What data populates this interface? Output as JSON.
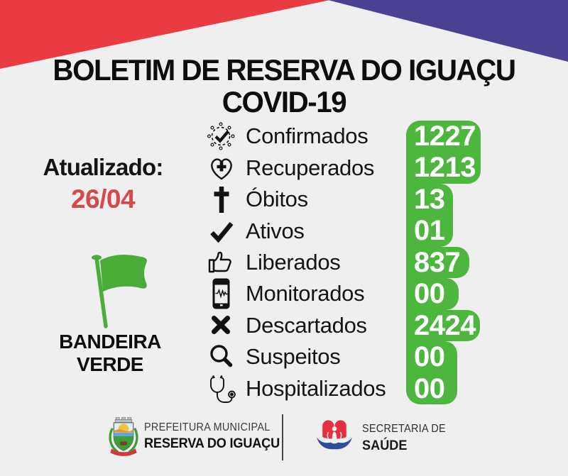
{
  "page": {
    "background": "#f0efef"
  },
  "banner": {
    "red": "#e93b41",
    "blue": "#4a4192"
  },
  "title": {
    "line1": "BOLETIM DE RESERVA DO IGUAÇU",
    "line2": "COVID-19"
  },
  "updated": {
    "label": "Atualizado:",
    "date": "26/04",
    "date_color": "#d4494e"
  },
  "flag": {
    "icon": "green-flag-icon",
    "color": "#4aad39",
    "label_line1": "BANDEIRA",
    "label_line2": "VERDE"
  },
  "stats": {
    "panel_color": "#4db63e",
    "value_color": "#ffffff",
    "rows": [
      {
        "icon": "virus-check-icon",
        "label": "Confirmados",
        "value": "1227"
      },
      {
        "icon": "heart-plus-icon",
        "label": "Recuperados",
        "value": "1213"
      },
      {
        "icon": "cross-icon",
        "label": "Óbitos",
        "value": "13"
      },
      {
        "icon": "checkmark-icon",
        "label": "Ativos",
        "value": "01"
      },
      {
        "icon": "thumbs-up-icon",
        "label": "Liberados",
        "value": "837"
      },
      {
        "icon": "phone-monitor-icon",
        "label": "Monitorados",
        "value": "00"
      },
      {
        "icon": "x-icon",
        "label": "Descartados",
        "value": "2424"
      },
      {
        "icon": "magnifier-icon",
        "label": "Suspeitos",
        "value": "00"
      },
      {
        "icon": "stethoscope-icon",
        "label": "Hospitalizados",
        "value": "00"
      }
    ]
  },
  "footer": {
    "left": {
      "icon": "city-coat-of-arms",
      "line1": "PREFEITURA MUNICIPAL",
      "line2": "RESERVA DO IGUAÇU"
    },
    "right": {
      "icon": "health-secretariat-logo",
      "line1": "SECRETARIA DE",
      "line2": "SAÚDE"
    }
  }
}
